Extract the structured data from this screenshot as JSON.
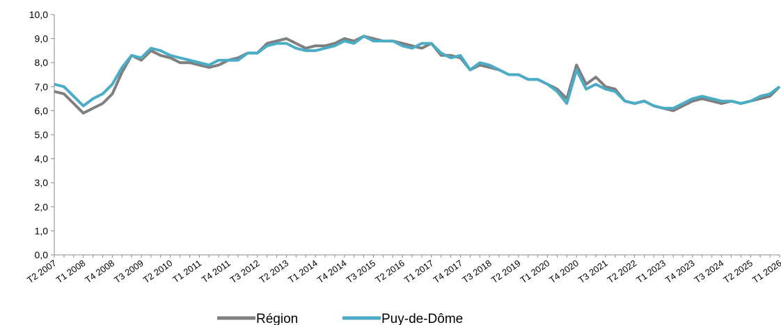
{
  "chart_data": {
    "type": "line",
    "categories": [
      "T2 2007",
      null,
      null,
      "T1 2008",
      null,
      null,
      "T4 2008",
      null,
      null,
      "T3 2009",
      null,
      null,
      "T2 2010",
      null,
      null,
      "T1 2011",
      null,
      null,
      "T4 2011",
      null,
      null,
      "T3 2012",
      null,
      null,
      "T2 2013",
      null,
      null,
      "T1 2014",
      null,
      null,
      "T4 2014",
      null,
      null,
      "T3 2015",
      null,
      null,
      "T2 2016",
      null,
      null,
      "T1 2017",
      null,
      null,
      "T4 2017",
      null,
      null,
      "T3 2018",
      null,
      null,
      "T2 2019",
      null,
      null,
      "T1 2020",
      null,
      null,
      "T4 2020",
      null,
      null,
      "T3 2021",
      null,
      null,
      "T2 2022",
      null,
      null,
      "T1 2023",
      null,
      null,
      "T4 2023",
      null,
      null,
      "T3 2024",
      null,
      null,
      "T2 2025",
      null,
      null,
      "T1 2026"
    ],
    "series": [
      {
        "name": "Région",
        "color": "#7f7f7f",
        "values": [
          6.8,
          6.7,
          6.3,
          5.9,
          6.1,
          6.3,
          6.7,
          7.6,
          8.3,
          8.1,
          8.5,
          8.3,
          8.2,
          8.0,
          8.0,
          7.9,
          7.8,
          7.9,
          8.1,
          8.2,
          8.4,
          8.4,
          8.8,
          8.9,
          9.0,
          8.8,
          8.6,
          8.7,
          8.7,
          8.8,
          9.0,
          8.9,
          9.1,
          9.0,
          8.9,
          8.9,
          8.8,
          8.7,
          8.6,
          8.8,
          8.3,
          8.3,
          8.2,
          7.7,
          7.9,
          7.8,
          7.7,
          7.5,
          7.5,
          7.3,
          7.3,
          7.1,
          6.9,
          6.5,
          7.9,
          7.1,
          7.4,
          7.0,
          6.9,
          6.4,
          6.3,
          6.4,
          6.2,
          6.1,
          6.0,
          6.2,
          6.4,
          6.5,
          6.4,
          6.3,
          6.4,
          6.3,
          6.4,
          6.5,
          6.6,
          7.0
        ]
      },
      {
        "name": "Puy-de-Dôme",
        "color": "#4bacc6",
        "values": [
          7.1,
          7.0,
          6.6,
          6.2,
          6.5,
          6.7,
          7.1,
          7.8,
          8.3,
          8.2,
          8.6,
          8.5,
          8.3,
          8.2,
          8.1,
          8.0,
          7.9,
          8.1,
          8.1,
          8.1,
          8.4,
          8.4,
          8.7,
          8.8,
          8.8,
          8.6,
          8.5,
          8.5,
          8.6,
          8.7,
          8.9,
          8.8,
          9.1,
          8.9,
          8.9,
          8.9,
          8.7,
          8.6,
          8.8,
          8.8,
          8.4,
          8.2,
          8.3,
          7.7,
          8.0,
          7.9,
          7.7,
          7.5,
          7.5,
          7.3,
          7.3,
          7.1,
          6.8,
          6.3,
          7.7,
          6.9,
          7.1,
          6.9,
          6.8,
          6.4,
          6.3,
          6.4,
          6.2,
          6.1,
          6.1,
          6.3,
          6.5,
          6.6,
          6.5,
          6.4,
          6.4,
          6.3,
          6.4,
          6.6,
          6.7,
          7.0
        ]
      }
    ],
    "ylim": [
      0,
      10
    ],
    "yticks": [
      {
        "value": 0,
        "label": "0,0"
      },
      {
        "value": 1,
        "label": "1,0"
      },
      {
        "value": 2,
        "label": "2,0"
      },
      {
        "value": 3,
        "label": "3,0"
      },
      {
        "value": 4,
        "label": "4,0"
      },
      {
        "value": 5,
        "label": "5,0"
      },
      {
        "value": 6,
        "label": "6,0"
      },
      {
        "value": 7,
        "label": "7,0"
      },
      {
        "value": 8,
        "label": "8,0"
      },
      {
        "value": 9,
        "label": "9,0"
      },
      {
        "value": 10,
        "label": "10,0"
      }
    ],
    "grid": false,
    "legend": "bottom"
  }
}
